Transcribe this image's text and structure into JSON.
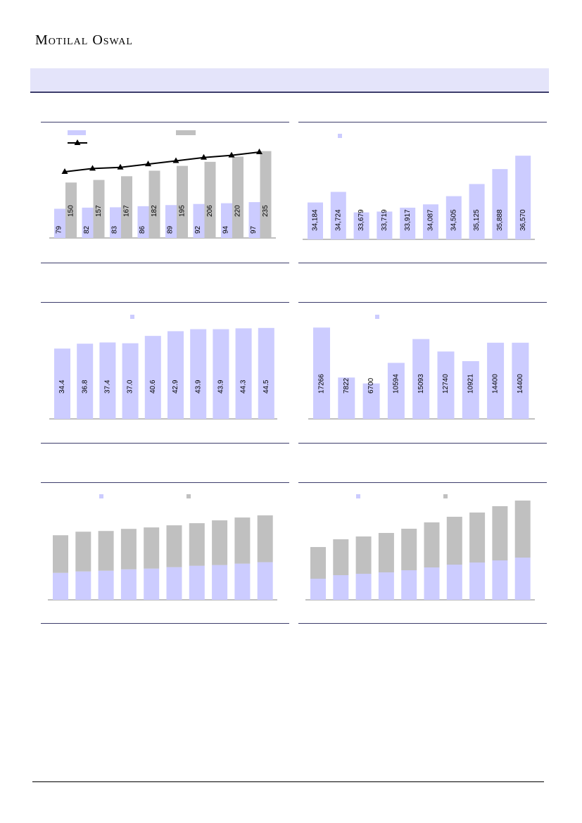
{
  "header": {
    "logo_text": "Motilal Oswal"
  },
  "colors": {
    "lavender": "#ccccff",
    "gray": "#c0c0c0",
    "line": "#000000",
    "rule": "#3d3d6b",
    "banner": "#e4e4fa"
  },
  "chart_data": [
    {
      "id": "chart1",
      "type": "bar",
      "grid": false,
      "series": [
        {
          "values": [
            79,
            82,
            83,
            86,
            89,
            92,
            94,
            97
          ],
          "color": "#ccccff"
        },
        {
          "values": [
            150,
            157,
            167,
            182,
            195,
            206,
            220,
            235
          ],
          "color": "#c0c0c0"
        },
        {
          "type": "line",
          "marker": "triangle",
          "values": [
            79,
            82,
            83,
            86,
            89,
            92,
            94,
            97
          ],
          "color": "#000000"
        }
      ],
      "value_labels": [
        [
          "79",
          "82",
          "83",
          "86",
          "89",
          "92",
          "94",
          "97"
        ],
        [
          "150",
          "157",
          "167",
          "182",
          "195",
          "206",
          "220",
          "235"
        ]
      ]
    },
    {
      "id": "chart2",
      "type": "bar",
      "grid": false,
      "series": [
        {
          "values": [
            34184,
            34724,
            33679,
            33719,
            33917,
            34087,
            34505,
            35125,
            35888,
            36570
          ],
          "color": "#ccccff"
        }
      ],
      "value_labels": [
        [
          "34,184",
          "34,724",
          "33,679",
          "33,719",
          "33,917",
          "34,087",
          "34,505",
          "35,125",
          "35,888",
          "36,570"
        ]
      ]
    },
    {
      "id": "chart3",
      "type": "bar",
      "grid": false,
      "series": [
        {
          "values": [
            34.4,
            36.8,
            37.4,
            37.0,
            40.6,
            42.9,
            43.9,
            43.9,
            44.3,
            44.5
          ],
          "color": "#ccccff"
        }
      ],
      "value_labels": [
        [
          "34.4",
          "36.8",
          "37.4",
          "37.0",
          "40.6",
          "42.9",
          "43.9",
          "43.9",
          "44.3",
          "44.5"
        ]
      ]
    },
    {
      "id": "chart4",
      "type": "bar",
      "grid": false,
      "series": [
        {
          "values": [
            17266,
            7822,
            6700,
            10594,
            15093,
            12740,
            10921,
            14400,
            14400
          ],
          "color": "#ccccff"
        }
      ],
      "value_labels": [
        [
          "17266",
          "7822",
          "6700",
          "10594",
          "15093",
          "12740",
          "10921",
          "14400",
          "14400"
        ]
      ]
    },
    {
      "id": "chart5",
      "type": "bar",
      "stacked": true,
      "grid": false,
      "series": [
        {
          "values": [
            38,
            40,
            41,
            43,
            44,
            46,
            48,
            49,
            51,
            53
          ],
          "color": "#ccccff"
        },
        {
          "values": [
            53,
            56,
            56,
            57,
            58,
            59,
            60,
            63,
            65,
            66
          ],
          "color": "#c0c0c0"
        }
      ]
    },
    {
      "id": "chart6",
      "type": "bar",
      "stacked": true,
      "grid": false,
      "series": [
        {
          "values": [
            30,
            35,
            37,
            39,
            42,
            46,
            50,
            53,
            56,
            60
          ],
          "color": "#ccccff"
        },
        {
          "values": [
            45,
            51,
            53,
            56,
            59,
            64,
            68,
            71,
            77,
            81
          ],
          "color": "#c0c0c0"
        }
      ]
    }
  ]
}
